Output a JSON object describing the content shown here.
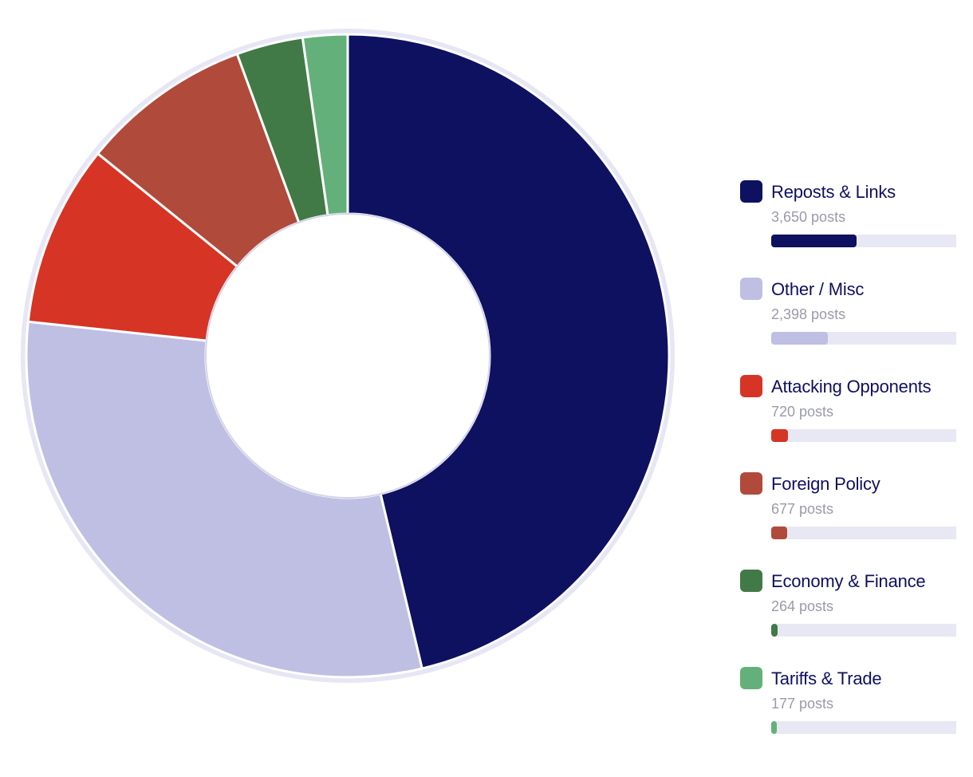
{
  "chart_data": {
    "type": "pie",
    "subtype": "donut",
    "unit_suffix": "posts",
    "categories": [
      "Reposts & Links",
      "Other / Misc",
      "Attacking Opponents",
      "Foreign Policy",
      "Economy & Finance",
      "Tariffs & Trade"
    ],
    "values": [
      3650,
      2398,
      720,
      677,
      264,
      177
    ],
    "count_labels": [
      "3,650 posts",
      "2,398 posts",
      "720 posts",
      "677 posts",
      "264 posts",
      "177 posts"
    ],
    "colors": [
      "#0e1060",
      "#bfbfe3",
      "#d63425",
      "#b04a3b",
      "#417a46",
      "#64b07a"
    ],
    "legend_position": "right",
    "legend_bar_track_color": "#e8e8f4",
    "ring_color": "#e6e6f4"
  }
}
